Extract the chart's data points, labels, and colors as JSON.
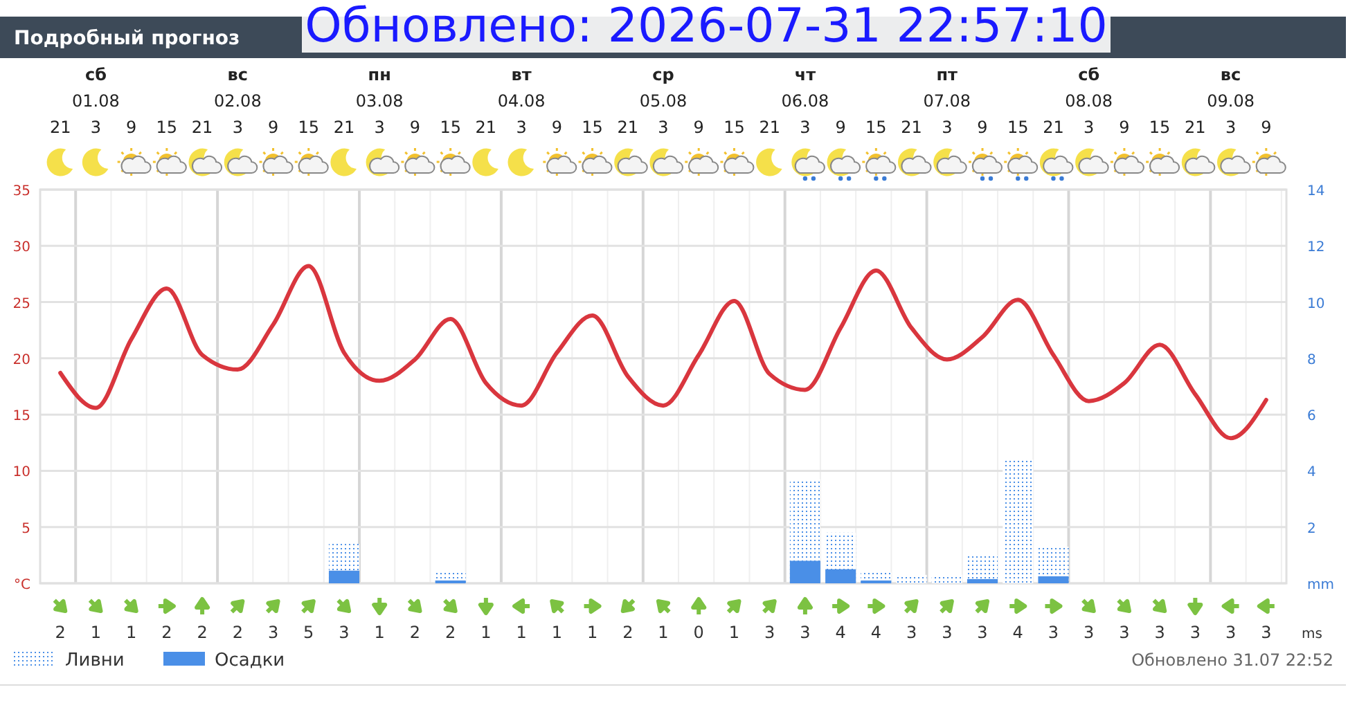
{
  "chart_data": {
    "type": "line",
    "title": "Подробный прогноз",
    "categories": [
      "21",
      "3",
      "9",
      "15",
      "21",
      "3",
      "9",
      "15",
      "21",
      "3",
      "9",
      "15",
      "21",
      "3",
      "9",
      "15",
      "21",
      "3",
      "9",
      "15",
      "21",
      "3",
      "9",
      "15",
      "21",
      "3",
      "9",
      "15",
      "21",
      "3",
      "9",
      "15",
      "21",
      "3",
      "9"
    ],
    "series": [
      {
        "name": "Ливни",
        "type": "bar",
        "axis": "y2",
        "color": "#4a8fe7",
        "line_style": "dotted",
        "values": [
          null,
          null,
          null,
          null,
          null,
          null,
          null,
          null,
          1.4,
          null,
          null,
          0.4,
          null,
          null,
          null,
          null,
          null,
          null,
          null,
          null,
          null,
          3.7,
          1.8,
          0.4,
          0.3,
          0.3,
          1.0,
          4.4,
          1.3,
          null,
          null,
          null,
          null,
          null,
          null
        ]
      },
      {
        "name": "Осадки",
        "type": "bar",
        "axis": "y2",
        "color": "#4a8fe7",
        "values": [
          null,
          null,
          null,
          null,
          null,
          null,
          null,
          null,
          0.45,
          null,
          null,
          0.1,
          null,
          null,
          null,
          null,
          null,
          null,
          null,
          null,
          null,
          0.8,
          0.5,
          0.1,
          null,
          null,
          0.15,
          null,
          0.25,
          null,
          null,
          null,
          null,
          null,
          null
        ]
      },
      {
        "color": "#d9363e",
        "values": [
          18.7,
          15.6,
          21.7,
          26.2,
          20.3,
          19,
          23,
          28.2,
          20.5,
          18,
          19.9,
          23.5,
          17.8,
          15.8,
          20.5,
          23.8,
          18.4,
          15.8,
          20.3,
          25.1,
          18.6,
          17.2,
          22.7,
          27.8,
          22.7,
          19.9,
          21.9,
          25.2,
          20.3,
          16.2,
          17.8,
          21.2,
          16.8,
          12.9,
          16.3
        ]
      }
    ],
    "ylim": [
      0,
      35
    ],
    "yticks": [
      {
        "value": 0,
        "label": "°C"
      },
      5,
      10,
      15,
      20,
      25,
      30,
      35
    ],
    "y2lim": [
      0,
      14
    ],
    "y2ticks": [
      {
        "value": 0,
        "label": "mm"
      },
      2,
      4,
      6,
      8,
      10,
      12,
      14
    ],
    "grid": true,
    "legend": "bottom left",
    "annotations": [
      "Обновлено: 2026-07-31 22:57:10",
      "Обновлено 31.07 22:52",
      "ms",
      "сб 01.08",
      "вс 02.08",
      "пн 03.08",
      "вт 04.08",
      "ср 05.08",
      "чт 06.08",
      "пт 07.08",
      "сб 08.08",
      "вс 09.08",
      "2",
      "1",
      "1",
      "2",
      "2",
      "2",
      "3",
      "5",
      "3",
      "1",
      "2",
      "2",
      "1",
      "1",
      "1",
      "1",
      "2",
      "1",
      "0",
      "1",
      "3",
      "3",
      "4",
      "4",
      "3",
      "3",
      "3",
      "4",
      "3",
      "3",
      "3",
      "3",
      "3",
      "3",
      "3"
    ]
  }
}
